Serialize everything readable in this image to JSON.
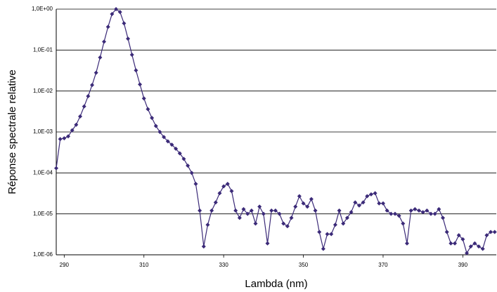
{
  "chart_data": {
    "type": "line",
    "x_label": "Lambda (nm)",
    "y_label": "Réponse spectrale relative",
    "color": "#3b2a78",
    "log_y": true,
    "grid": true,
    "xlim": [
      288,
      398.4
    ],
    "xticks": [
      290,
      310,
      330,
      350,
      370,
      390
    ],
    "ylim": [
      1e-06,
      1
    ],
    "yticks": [
      {
        "value": 1e-06,
        "label": "1,0E-06"
      },
      {
        "value": 1e-05,
        "label": "1,0E-05"
      },
      {
        "value": 0.0001,
        "label": "1,0E-04"
      },
      {
        "value": 0.001,
        "label": "1,0E-03"
      },
      {
        "value": 0.01,
        "label": "1,0E-02"
      },
      {
        "value": 0.1,
        "label": "1,0E-01"
      },
      {
        "value": 1,
        "label": "1,0E+00"
      }
    ],
    "x": [
      288,
      289,
      290,
      291,
      292,
      293,
      294,
      295,
      296,
      297,
      298,
      299,
      300,
      301,
      302,
      303,
      304,
      305,
      306,
      307,
      308,
      309,
      310,
      311,
      312,
      313,
      314,
      315,
      316,
      317,
      318,
      319,
      320,
      321,
      322,
      323,
      324,
      325,
      326,
      327,
      328,
      329,
      330,
      331,
      332,
      333,
      334,
      335,
      336,
      337,
      338,
      339,
      340,
      341,
      342,
      343,
      344,
      345,
      346,
      347,
      348,
      349,
      350,
      351,
      352,
      353,
      354,
      355,
      356,
      357,
      358,
      359,
      360,
      361,
      362,
      363,
      364,
      365,
      366,
      367,
      368,
      369,
      370,
      371,
      372,
      373,
      374,
      375,
      376,
      377,
      378,
      379,
      380,
      381,
      382,
      383,
      384,
      385,
      386,
      387,
      388,
      389,
      390,
      391,
      392,
      393,
      394,
      395,
      396,
      397,
      398
    ],
    "values": [
      0.00013,
      0.00067,
      0.0007,
      0.00078,
      0.0011,
      0.0015,
      0.0024,
      0.0042,
      0.0075,
      0.014,
      0.028,
      0.066,
      0.16,
      0.37,
      0.76,
      1.0,
      0.85,
      0.45,
      0.19,
      0.077,
      0.032,
      0.0145,
      0.0066,
      0.0036,
      0.0022,
      0.0014,
      0.001,
      0.00075,
      0.00059,
      0.00049,
      0.00039,
      0.0003,
      0.00022,
      0.00015,
      0.0001,
      5.4e-05,
      1.2e-05,
      1.6e-06,
      5.4e-06,
      1.2e-05,
      1.9e-05,
      3.2e-05,
      4.7e-05,
      5.4e-05,
      3.6e-05,
      1.2e-05,
      8e-06,
      1.3e-05,
      1e-05,
      1.2e-05,
      5.8e-06,
      1.5e-05,
      1e-05,
      1.9e-06,
      1.2e-05,
      1.2e-05,
      1e-05,
      5.8e-06,
      5e-06,
      8e-06,
      1.5e-05,
      2.7e-05,
      1.8e-05,
      1.5e-05,
      2.3e-05,
      1.2e-05,
      3.6e-06,
      1.4e-06,
      3.2e-06,
      3.2e-06,
      5.4e-06,
      1.2e-05,
      5.8e-06,
      8e-06,
      1.1e-05,
      1.9e-05,
      1.6e-05,
      1.9e-05,
      2.7e-05,
      3e-05,
      3.2e-05,
      1.8e-05,
      1.8e-05,
      1.2e-05,
      1e-05,
      1e-05,
      9e-06,
      5.8e-06,
      1.9e-06,
      1.2e-05,
      1.3e-05,
      1.2e-05,
      1.1e-05,
      1.2e-05,
      1e-05,
      1e-05,
      1.3e-05,
      8e-06,
      3.6e-06,
      1.9e-06,
      1.9e-06,
      3e-06,
      2.4e-06,
      1.1e-06,
      1.6e-06,
      1.9e-06,
      1.6e-06,
      1.4e-06,
      3e-06,
      3.6e-06,
      3.6e-06
    ]
  }
}
